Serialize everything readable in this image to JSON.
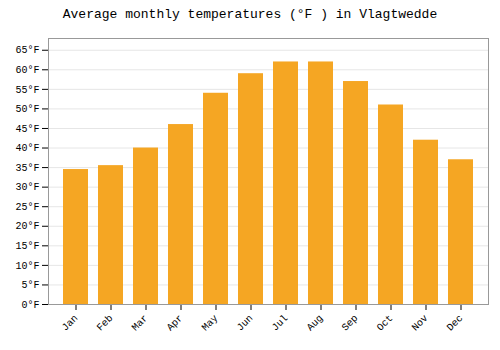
{
  "chart_data": {
    "type": "bar",
    "title": "Average monthly temperatures (°F ) in Vlagtwedde",
    "categories": [
      "Jan",
      "Feb",
      "Mar",
      "Apr",
      "May",
      "Jun",
      "Jul",
      "Aug",
      "Sep",
      "Oct",
      "Nov",
      "Dec"
    ],
    "values": [
      34.5,
      35.5,
      40.0,
      46.0,
      54.0,
      59.0,
      62.0,
      62.0,
      57.0,
      51.0,
      42.0,
      37.0
    ],
    "color": "#F5A623",
    "ylim": [
      0,
      68
    ],
    "yticks": [
      {
        "value": 0,
        "label": "0°F"
      },
      {
        "value": 5,
        "label": "5°F"
      },
      {
        "value": 10,
        "label": "10°F"
      },
      {
        "value": 15,
        "label": "15°F"
      },
      {
        "value": 20,
        "label": "20°F"
      },
      {
        "value": 25,
        "label": "25°F"
      },
      {
        "value": 30,
        "label": "30°F"
      },
      {
        "value": 35,
        "label": "35°F"
      },
      {
        "value": 40,
        "label": "40°F"
      },
      {
        "value": 45,
        "label": "45°F"
      },
      {
        "value": 50,
        "label": "50°F"
      },
      {
        "value": 55,
        "label": "55°F"
      },
      {
        "value": 60,
        "label": "60°F"
      },
      {
        "value": 65,
        "label": "65°F"
      }
    ],
    "grid": true
  }
}
